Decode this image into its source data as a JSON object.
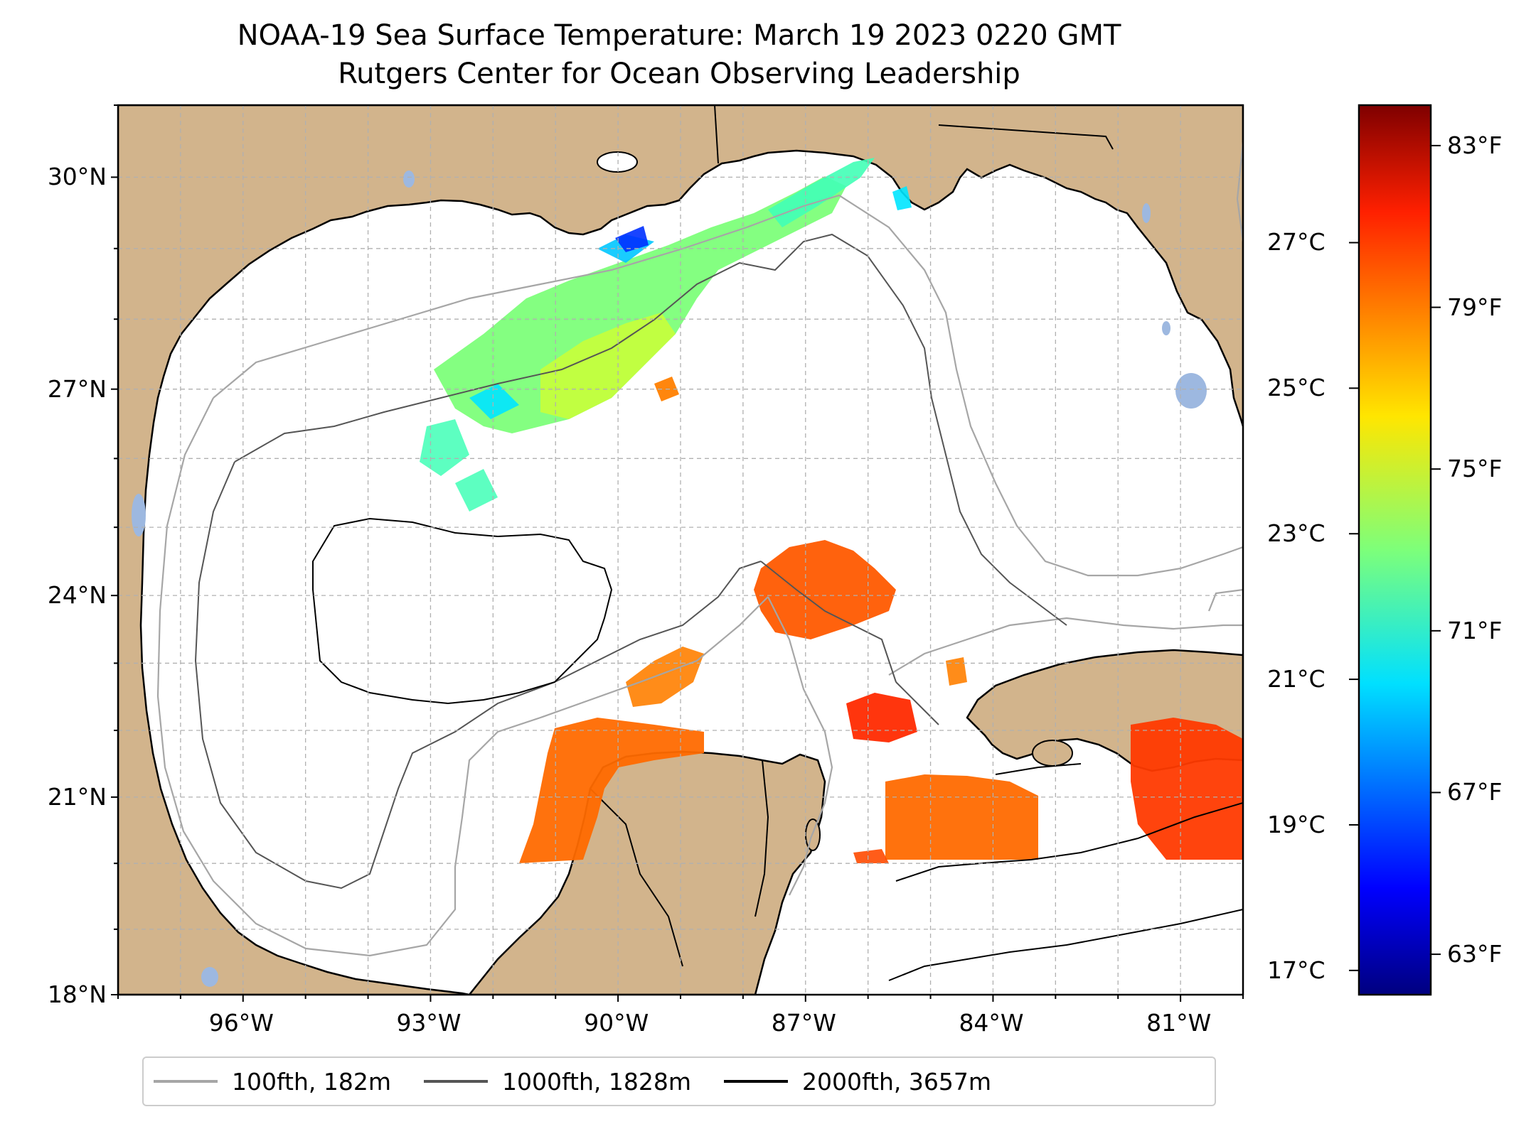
{
  "title_line1": "NOAA-19 Sea Surface Temperature: March 19 2023 0220 GMT",
  "title_line2": "Rutgers Center for Ocean Observing Leadership",
  "map": {
    "extent": {
      "lon_min": -98.0,
      "lon_max": -80.0,
      "lat_min": 18.0,
      "lat_max": 31.0
    },
    "lat_ticks": [
      {
        "value": 30,
        "label": "30°N"
      },
      {
        "value": 27,
        "label": "27°N"
      },
      {
        "value": 24,
        "label": "24°N"
      },
      {
        "value": 21,
        "label": "21°N"
      },
      {
        "value": 18,
        "label": "18°N"
      }
    ],
    "lon_ticks": [
      {
        "value": -96,
        "label": "96°W"
      },
      {
        "value": -93,
        "label": "93°W"
      },
      {
        "value": -90,
        "label": "90°W"
      },
      {
        "value": -87,
        "label": "87°W"
      },
      {
        "value": -84,
        "label": "84°W"
      },
      {
        "value": -81,
        "label": "81°W"
      }
    ],
    "gridlines": true,
    "land_color": "#d2b48c",
    "lake_color": "#9db8e0",
    "coast_color": "#000000"
  },
  "legend": [
    {
      "label": "100fth, 182m",
      "color": "#a6a6a6"
    },
    {
      "label": "1000fth, 1828m",
      "color": "#555555"
    },
    {
      "label": "2000fth, 3657m",
      "color": "#000000"
    }
  ],
  "colorbar": {
    "colormap": "jet",
    "range_f": [
      62,
      84
    ],
    "celsius_ticks": [
      "27°C",
      "25°C",
      "23°C",
      "21°C",
      "19°C",
      "17°C"
    ],
    "fahrenheit_ticks": [
      "83°F",
      "79°F",
      "75°F",
      "71°F",
      "67°F",
      "63°F"
    ],
    "celsius_values": [
      27,
      25,
      23,
      21,
      19,
      17
    ],
    "fahrenheit_values": [
      83,
      79,
      75,
      71,
      67,
      63
    ]
  }
}
